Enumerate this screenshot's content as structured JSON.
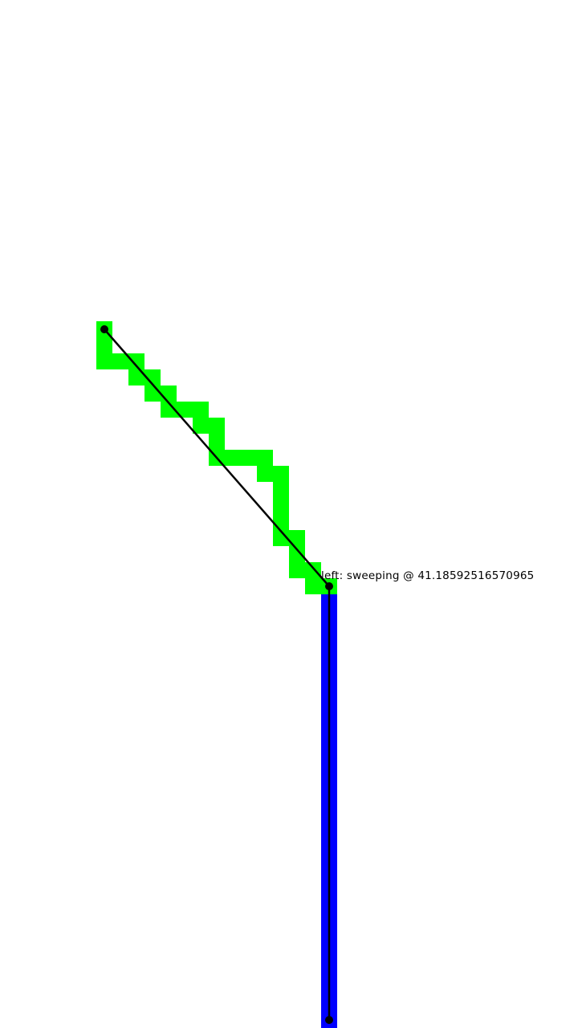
{
  "status": {
    "side": "left",
    "state": "sweeping",
    "angle": "41.18592516570965",
    "text": "left: sweeping @ 41.18592516570965"
  },
  "colors": {
    "background": "#ffffff",
    "swept_cells": "#00ff00",
    "fixed_segment": "#0000ff",
    "line": "#000000",
    "node": "#000000"
  }
}
